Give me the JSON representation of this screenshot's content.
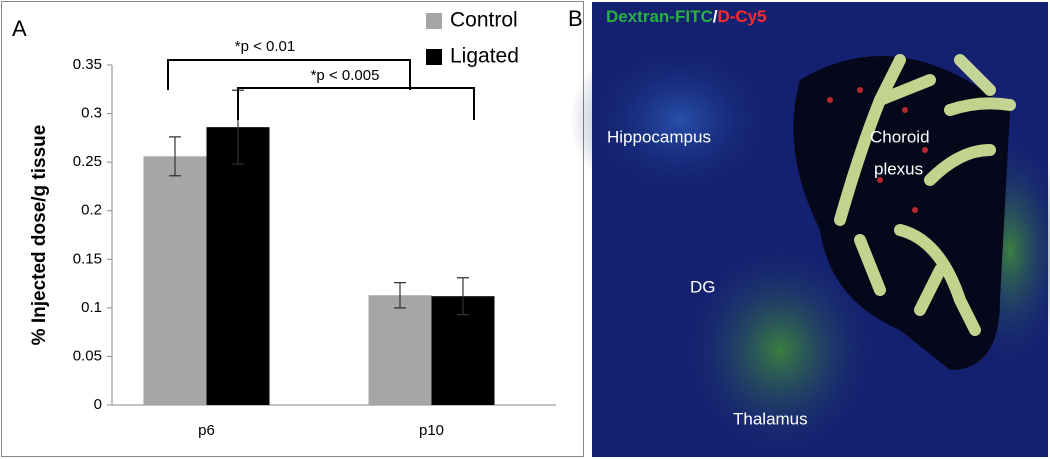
{
  "chart_data": {
    "type": "bar",
    "panel_label": "A",
    "ylabel": "% Injected dose/g tissue",
    "categories": [
      "p6",
      "p10"
    ],
    "series": [
      {
        "name": "Control",
        "color": "#a6a6a6",
        "values": [
          0.256,
          0.113
        ],
        "errors": [
          0.02,
          0.013
        ]
      },
      {
        "name": "Ligated",
        "color": "#000000",
        "values": [
          0.286,
          0.112
        ],
        "errors": [
          0.038,
          0.019
        ]
      }
    ],
    "ylim": [
      0,
      0.35
    ],
    "yticks": [
      0,
      0.05,
      0.1,
      0.15,
      0.2,
      0.25,
      0.3,
      0.35
    ],
    "annotations": [
      "*p < 0.01",
      "*p < 0.005"
    ],
    "legend": "top-right"
  },
  "image_panel": {
    "panel_label": "B",
    "stain_green": "Dextran-FITC",
    "separator": "/",
    "stain_red": "D-Cy5",
    "labels": [
      "Hippocampus",
      "Choroid",
      "plexus",
      "DG",
      "Thalamus"
    ]
  }
}
